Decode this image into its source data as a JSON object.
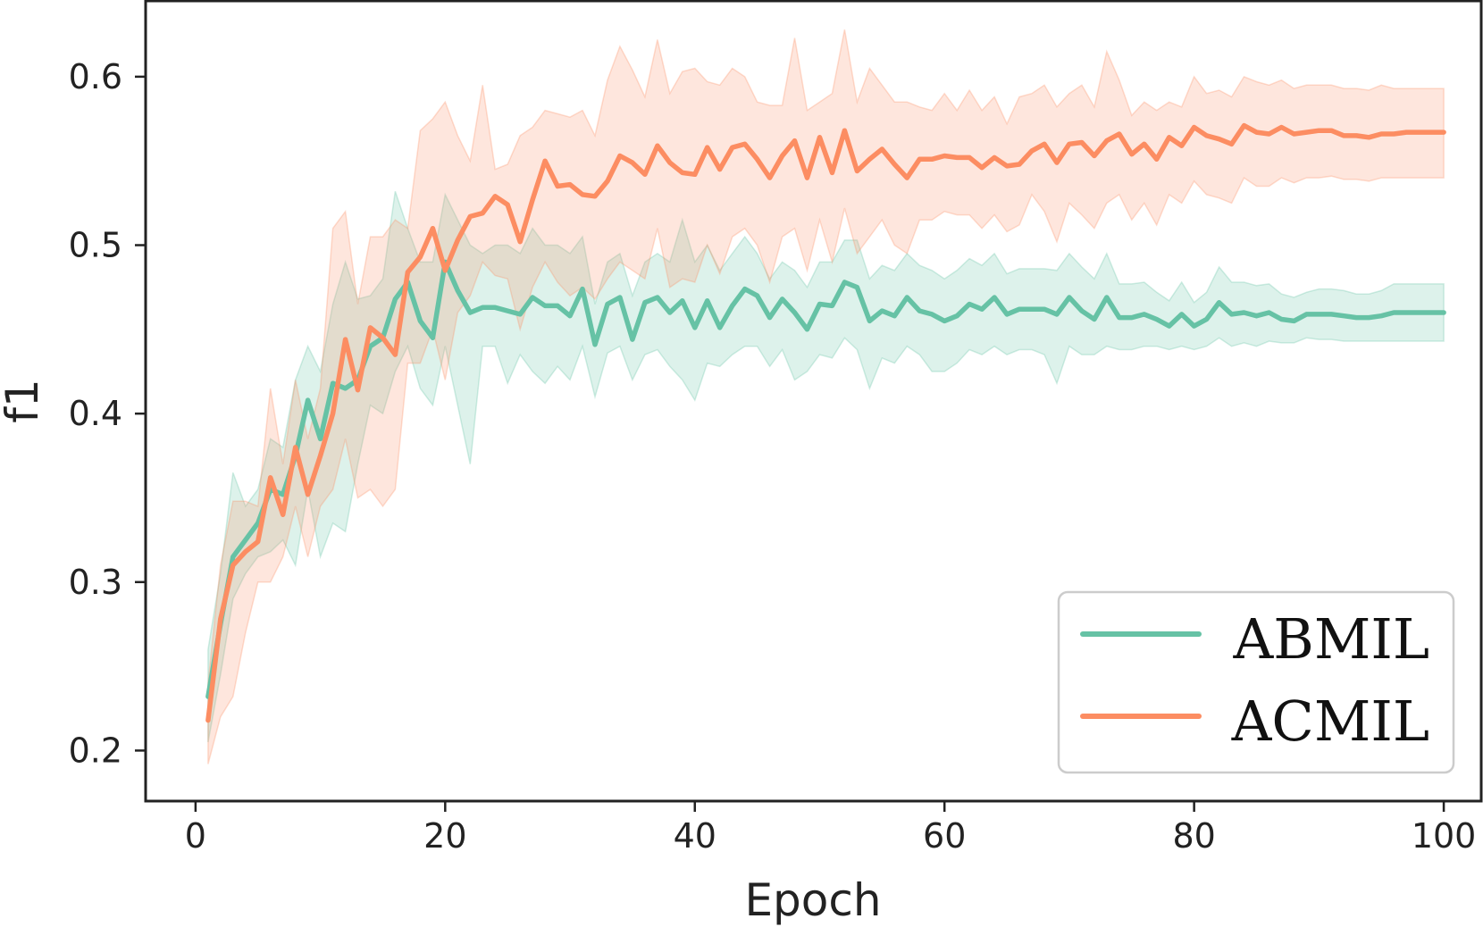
{
  "chart_data": {
    "type": "line",
    "title": "",
    "xlabel": "Epoch",
    "ylabel": "f1",
    "xlim": [
      -4,
      103
    ],
    "ylim": [
      0.17,
      0.645
    ],
    "xticks": [
      0,
      20,
      40,
      60,
      80,
      100
    ],
    "yticks": [
      0.2,
      0.3,
      0.4,
      0.5,
      0.6
    ],
    "xtick_labels": [
      "0",
      "20",
      "40",
      "60",
      "80",
      "100"
    ],
    "ytick_labels": [
      "0.2",
      "0.3",
      "0.4",
      "0.5",
      "0.6"
    ],
    "grid": false,
    "legend_position": "bottom-right",
    "x": [
      1,
      2,
      3,
      4,
      5,
      6,
      7,
      8,
      9,
      10,
      11,
      12,
      13,
      14,
      15,
      16,
      17,
      18,
      19,
      20,
      21,
      22,
      23,
      24,
      25,
      26,
      27,
      28,
      29,
      30,
      31,
      32,
      33,
      34,
      35,
      36,
      37,
      38,
      39,
      40,
      41,
      42,
      43,
      44,
      45,
      46,
      47,
      48,
      49,
      50,
      51,
      52,
      53,
      54,
      55,
      56,
      57,
      58,
      59,
      60,
      61,
      62,
      63,
      64,
      65,
      66,
      67,
      68,
      69,
      70,
      71,
      72,
      73,
      74,
      75,
      76,
      77,
      78,
      79,
      80,
      81,
      82,
      83,
      84,
      85,
      86,
      87,
      88,
      89,
      90,
      91,
      92,
      93,
      94,
      95,
      96,
      97,
      98,
      99,
      100
    ],
    "series": [
      {
        "name": "ABMIL",
        "color": "#66c2a5",
        "values": [
          0.232,
          0.275,
          0.315,
          0.325,
          0.335,
          0.355,
          0.352,
          0.375,
          0.408,
          0.385,
          0.418,
          0.415,
          0.42,
          0.44,
          0.445,
          0.468,
          0.478,
          0.455,
          0.445,
          0.49,
          0.473,
          0.46,
          0.463,
          0.463,
          0.461,
          0.459,
          0.469,
          0.464,
          0.464,
          0.458,
          0.474,
          0.441,
          0.465,
          0.469,
          0.444,
          0.466,
          0.469,
          0.46,
          0.467,
          0.451,
          0.467,
          0.451,
          0.464,
          0.474,
          0.47,
          0.457,
          0.468,
          0.46,
          0.45,
          0.465,
          0.464,
          0.478,
          0.475,
          0.455,
          0.461,
          0.458,
          0.469,
          0.461,
          0.459,
          0.455,
          0.458,
          0.465,
          0.462,
          0.469,
          0.459,
          0.462,
          0.462,
          0.462,
          0.459,
          0.469,
          0.461,
          0.456,
          0.469,
          0.457,
          0.457,
          0.459,
          0.456,
          0.452,
          0.459,
          0.452,
          0.456,
          0.466,
          0.459,
          0.46,
          0.458,
          0.46,
          0.456,
          0.455,
          0.459,
          0.459,
          0.459,
          0.458,
          0.457,
          0.457,
          0.458,
          0.46,
          0.46,
          0.46,
          0.46,
          0.46
        ],
        "lower": [
          0.205,
          0.245,
          0.29,
          0.305,
          0.315,
          0.318,
          0.325,
          0.31,
          0.355,
          0.315,
          0.335,
          0.33,
          0.37,
          0.405,
          0.4,
          0.425,
          0.44,
          0.415,
          0.405,
          0.44,
          0.405,
          0.37,
          0.44,
          0.44,
          0.418,
          0.435,
          0.425,
          0.418,
          0.428,
          0.42,
          0.44,
          0.41,
          0.436,
          0.44,
          0.42,
          0.435,
          0.438,
          0.428,
          0.42,
          0.408,
          0.43,
          0.428,
          0.435,
          0.44,
          0.44,
          0.428,
          0.438,
          0.42,
          0.425,
          0.435,
          0.433,
          0.445,
          0.438,
          0.415,
          0.433,
          0.43,
          0.44,
          0.435,
          0.425,
          0.425,
          0.43,
          0.438,
          0.435,
          0.44,
          0.435,
          0.438,
          0.438,
          0.435,
          0.418,
          0.44,
          0.435,
          0.435,
          0.44,
          0.438,
          0.438,
          0.44,
          0.44,
          0.438,
          0.44,
          0.438,
          0.44,
          0.445,
          0.44,
          0.442,
          0.44,
          0.443,
          0.442,
          0.442,
          0.445,
          0.444,
          0.444,
          0.443,
          0.443,
          0.443,
          0.443,
          0.443,
          0.443,
          0.443,
          0.443,
          0.443
        ],
        "upper": [
          0.26,
          0.305,
          0.365,
          0.345,
          0.355,
          0.385,
          0.38,
          0.42,
          0.44,
          0.425,
          0.465,
          0.49,
          0.468,
          0.47,
          0.48,
          0.532,
          0.51,
          0.49,
          0.49,
          0.53,
          0.515,
          0.5,
          0.495,
          0.5,
          0.5,
          0.495,
          0.51,
          0.5,
          0.5,
          0.495,
          0.505,
          0.465,
          0.49,
          0.495,
          0.47,
          0.49,
          0.495,
          0.49,
          0.515,
          0.49,
          0.5,
          0.485,
          0.495,
          0.505,
          0.495,
          0.48,
          0.49,
          0.485,
          0.475,
          0.49,
          0.49,
          0.503,
          0.503,
          0.48,
          0.488,
          0.485,
          0.495,
          0.488,
          0.485,
          0.48,
          0.485,
          0.492,
          0.488,
          0.495,
          0.483,
          0.486,
          0.486,
          0.486,
          0.485,
          0.495,
          0.487,
          0.48,
          0.495,
          0.477,
          0.477,
          0.478,
          0.472,
          0.467,
          0.478,
          0.466,
          0.472,
          0.487,
          0.478,
          0.478,
          0.476,
          0.477,
          0.471,
          0.469,
          0.472,
          0.474,
          0.474,
          0.473,
          0.471,
          0.471,
          0.473,
          0.477,
          0.477,
          0.477,
          0.477,
          0.477
        ]
      },
      {
        "name": "ACMIL",
        "color": "#fc8d62",
        "values": [
          0.218,
          0.278,
          0.31,
          0.318,
          0.324,
          0.362,
          0.34,
          0.38,
          0.352,
          0.375,
          0.4,
          0.444,
          0.414,
          0.451,
          0.445,
          0.435,
          0.484,
          0.493,
          0.51,
          0.485,
          0.503,
          0.517,
          0.519,
          0.529,
          0.524,
          0.502,
          0.527,
          0.55,
          0.535,
          0.536,
          0.53,
          0.529,
          0.538,
          0.553,
          0.549,
          0.542,
          0.559,
          0.549,
          0.543,
          0.542,
          0.558,
          0.545,
          0.558,
          0.56,
          0.551,
          0.54,
          0.553,
          0.562,
          0.54,
          0.564,
          0.543,
          0.568,
          0.544,
          0.551,
          0.557,
          0.548,
          0.54,
          0.551,
          0.551,
          0.553,
          0.552,
          0.552,
          0.546,
          0.552,
          0.547,
          0.548,
          0.556,
          0.56,
          0.549,
          0.56,
          0.561,
          0.553,
          0.562,
          0.566,
          0.554,
          0.56,
          0.551,
          0.564,
          0.559,
          0.57,
          0.565,
          0.563,
          0.56,
          0.571,
          0.567,
          0.566,
          0.57,
          0.566,
          0.567,
          0.568,
          0.568,
          0.565,
          0.565,
          0.564,
          0.566,
          0.566,
          0.567,
          0.567,
          0.567,
          0.567
        ],
        "lower": [
          0.192,
          0.22,
          0.232,
          0.27,
          0.3,
          0.3,
          0.315,
          0.345,
          0.315,
          0.345,
          0.355,
          0.385,
          0.35,
          0.355,
          0.345,
          0.355,
          0.43,
          0.43,
          0.45,
          0.42,
          0.46,
          0.47,
          0.49,
          0.482,
          0.48,
          0.45,
          0.475,
          0.49,
          0.478,
          0.47,
          0.475,
          0.468,
          0.48,
          0.49,
          0.485,
          0.48,
          0.51,
          0.475,
          0.48,
          0.478,
          0.5,
          0.483,
          0.505,
          0.51,
          0.5,
          0.478,
          0.505,
          0.51,
          0.485,
          0.515,
          0.49,
          0.522,
          0.495,
          0.505,
          0.515,
          0.5,
          0.495,
          0.515,
          0.515,
          0.52,
          0.518,
          0.518,
          0.51,
          0.518,
          0.508,
          0.512,
          0.53,
          0.52,
          0.502,
          0.525,
          0.518,
          0.51,
          0.525,
          0.53,
          0.515,
          0.525,
          0.512,
          0.53,
          0.525,
          0.538,
          0.53,
          0.528,
          0.525,
          0.54,
          0.535,
          0.535,
          0.54,
          0.537,
          0.54,
          0.54,
          0.541,
          0.539,
          0.539,
          0.538,
          0.54,
          0.54,
          0.54,
          0.54,
          0.54,
          0.54
        ],
        "upper": [
          0.24,
          0.31,
          0.348,
          0.348,
          0.345,
          0.415,
          0.37,
          0.42,
          0.385,
          0.415,
          0.51,
          0.52,
          0.465,
          0.505,
          0.505,
          0.515,
          0.51,
          0.568,
          0.575,
          0.585,
          0.565,
          0.55,
          0.595,
          0.545,
          0.548,
          0.565,
          0.57,
          0.58,
          0.578,
          0.576,
          0.58,
          0.565,
          0.598,
          0.618,
          0.604,
          0.588,
          0.622,
          0.59,
          0.603,
          0.605,
          0.597,
          0.595,
          0.605,
          0.6,
          0.585,
          0.583,
          0.583,
          0.623,
          0.58,
          0.585,
          0.59,
          0.628,
          0.585,
          0.605,
          0.595,
          0.585,
          0.585,
          0.582,
          0.58,
          0.59,
          0.58,
          0.592,
          0.58,
          0.588,
          0.572,
          0.588,
          0.59,
          0.595,
          0.582,
          0.59,
          0.595,
          0.582,
          0.615,
          0.598,
          0.577,
          0.585,
          0.58,
          0.585,
          0.582,
          0.6,
          0.59,
          0.592,
          0.588,
          0.6,
          0.597,
          0.595,
          0.598,
          0.593,
          0.595,
          0.595,
          0.595,
          0.593,
          0.593,
          0.592,
          0.595,
          0.593,
          0.593,
          0.593,
          0.593,
          0.593
        ]
      }
    ]
  }
}
